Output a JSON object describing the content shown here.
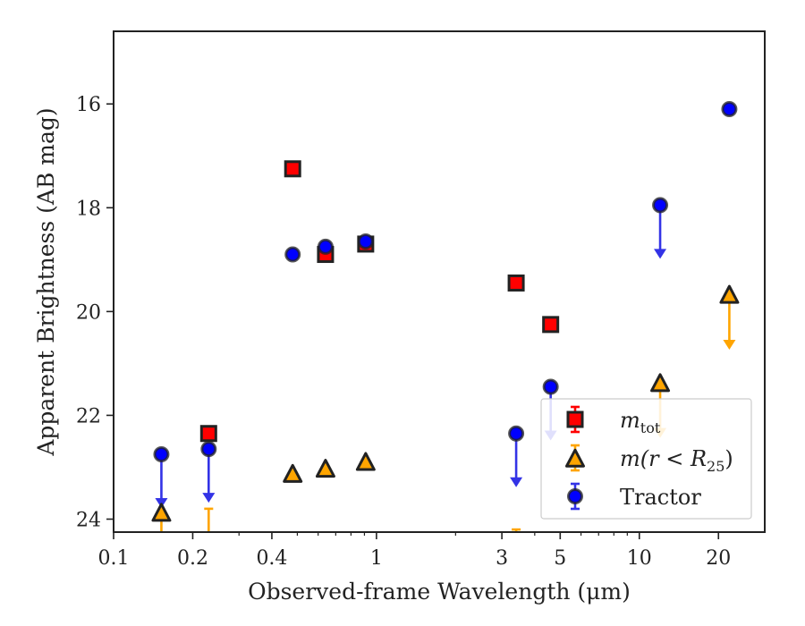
{
  "chart_data": {
    "type": "scatter",
    "title": "",
    "xlabel": "Observed-frame Wavelength (μm)",
    "ylabel": "Apparent Brightness (AB mag)",
    "xscale": "log",
    "xlim": [
      0.1,
      30
    ],
    "ylim": [
      24.25,
      14.6
    ],
    "y_inverted": true,
    "x_ticks": [
      0.1,
      0.2,
      0.4,
      1,
      3,
      5,
      10,
      20
    ],
    "x_tick_labels": [
      "0.1",
      "0.2",
      "0.4",
      "1",
      "3",
      "5",
      "10",
      "20"
    ],
    "y_ticks": [
      16,
      18,
      20,
      22,
      24
    ],
    "y_tick_labels": [
      "16",
      "18",
      "20",
      "22",
      "24"
    ],
    "grid": false,
    "legend_position": "lower-right",
    "series": [
      {
        "key": "tot",
        "name": "m_tot",
        "legend_main": "m",
        "legend_sub": "tot",
        "marker": "square",
        "color": "#ff0000",
        "edgecolor": "#222222",
        "points": [
          {
            "x": 0.23,
            "y": 22.35
          },
          {
            "x": 0.48,
            "y": 17.25
          },
          {
            "x": 0.64,
            "y": 18.9
          },
          {
            "x": 0.91,
            "y": 18.7
          },
          {
            "x": 3.4,
            "y": 19.45
          },
          {
            "x": 4.6,
            "y": 20.25
          }
        ],
        "upper_limits": []
      },
      {
        "key": "r25",
        "name": "m(r < R25)",
        "legend_main": "m(r < R",
        "legend_sub": "25",
        "legend_end": ")",
        "marker": "triangle",
        "color": "#ffa500",
        "edgecolor": "#222222",
        "points": [
          {
            "x": 0.152,
            "y": 23.9
          },
          {
            "x": 0.48,
            "y": 23.15
          },
          {
            "x": 0.64,
            "y": 23.05
          },
          {
            "x": 0.91,
            "y": 22.92
          },
          {
            "x": 12,
            "y": 21.4
          },
          {
            "x": 22,
            "y": 19.7
          }
        ],
        "upper_limits": [
          {
            "x": 0.152,
            "y": 23.95
          },
          {
            "x": 0.23,
            "y": 23.8
          },
          {
            "x": 3.4,
            "y": 24.2
          },
          {
            "x": 12,
            "y": 21.4
          },
          {
            "x": 22,
            "y": 19.7
          }
        ]
      },
      {
        "key": "tractor",
        "name": "Tractor",
        "legend_main": "Tractor",
        "marker": "circle",
        "color": "#0000ff",
        "edgecolor": "#222222",
        "points": [
          {
            "x": 0.152,
            "y": 22.75
          },
          {
            "x": 0.23,
            "y": 22.65
          },
          {
            "x": 0.48,
            "y": 18.9
          },
          {
            "x": 0.64,
            "y": 18.75
          },
          {
            "x": 0.91,
            "y": 18.65
          },
          {
            "x": 3.4,
            "y": 22.35
          },
          {
            "x": 4.6,
            "y": 21.45
          },
          {
            "x": 12,
            "y": 17.95
          },
          {
            "x": 22,
            "y": 16.1
          }
        ],
        "upper_limits": [
          {
            "x": 0.152,
            "y": 22.75
          },
          {
            "x": 0.23,
            "y": 22.65
          },
          {
            "x": 3.4,
            "y": 22.35
          },
          {
            "x": 4.6,
            "y": 21.45
          },
          {
            "x": 12,
            "y": 17.95
          }
        ]
      }
    ]
  }
}
